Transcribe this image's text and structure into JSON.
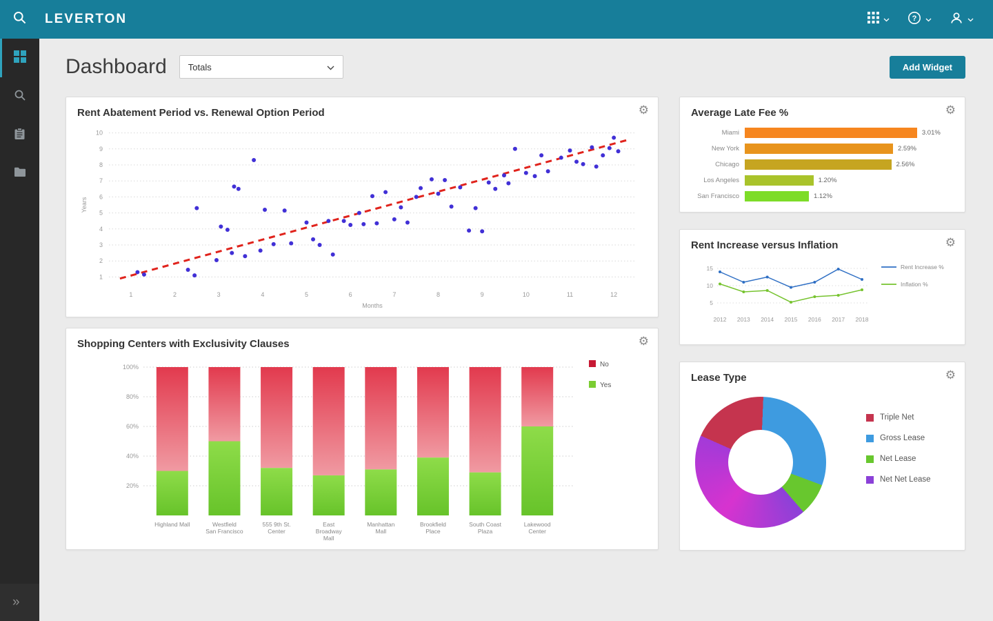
{
  "topbar": {
    "brand": "LEVERTON"
  },
  "header": {
    "title": "Dashboard",
    "filter": {
      "value": "Totals"
    },
    "add_widget_label": "Add Widget"
  },
  "icons": {
    "topbar_search": "magnifier",
    "apps_menu": "3x3-grid",
    "help_menu": "question-circle",
    "user_menu": "person",
    "sidebar_dashboard": "2x2-grid",
    "sidebar_search": "magnifier",
    "sidebar_tasks": "clipboard",
    "sidebar_documents": "folder",
    "expand_glyph": "»",
    "gear_glyph": "⚙"
  },
  "widgets": {
    "scatter": {
      "title": "Rent Abatement Period vs. Renewal Option Period",
      "chart_data": {
        "type": "scatter",
        "xlabel": "Months",
        "ylabel": "Years",
        "xlim": [
          0.5,
          12.5
        ],
        "ylim": [
          0.5,
          10.5
        ],
        "xticks": [
          1,
          2,
          3,
          4,
          5,
          6,
          7,
          8,
          9,
          10,
          11,
          12
        ],
        "yticks": [
          1,
          2,
          3,
          4,
          5,
          6,
          7,
          8,
          9,
          10
        ],
        "point_color": "#4130d6",
        "trend": {
          "x1": 0.75,
          "y1": 0.9,
          "x2": 12.3,
          "y2": 9.55,
          "color": "#e0231c"
        },
        "points": [
          [
            1.15,
            1.3
          ],
          [
            1.3,
            1.15
          ],
          [
            2.3,
            1.45
          ],
          [
            2.45,
            1.1
          ],
          [
            2.5,
            5.3
          ],
          [
            2.95,
            2.05
          ],
          [
            3.05,
            4.15
          ],
          [
            3.2,
            3.95
          ],
          [
            3.3,
            2.5
          ],
          [
            3.35,
            6.65
          ],
          [
            3.45,
            6.5
          ],
          [
            3.6,
            2.3
          ],
          [
            3.8,
            8.3
          ],
          [
            3.95,
            2.65
          ],
          [
            4.05,
            5.2
          ],
          [
            4.25,
            3.05
          ],
          [
            4.5,
            5.15
          ],
          [
            4.65,
            3.1
          ],
          [
            5.0,
            4.4
          ],
          [
            5.15,
            3.35
          ],
          [
            5.3,
            3.0
          ],
          [
            5.5,
            4.5
          ],
          [
            5.6,
            2.4
          ],
          [
            5.85,
            4.5
          ],
          [
            6.0,
            4.25
          ],
          [
            6.2,
            5.0
          ],
          [
            6.3,
            4.3
          ],
          [
            6.5,
            6.05
          ],
          [
            6.6,
            4.35
          ],
          [
            6.8,
            6.3
          ],
          [
            7.0,
            4.6
          ],
          [
            7.15,
            5.35
          ],
          [
            7.3,
            4.4
          ],
          [
            7.5,
            6.0
          ],
          [
            7.6,
            6.55
          ],
          [
            7.85,
            7.1
          ],
          [
            8.0,
            6.2
          ],
          [
            8.15,
            7.05
          ],
          [
            8.3,
            5.4
          ],
          [
            8.5,
            6.6
          ],
          [
            8.7,
            3.9
          ],
          [
            8.85,
            5.3
          ],
          [
            9.0,
            3.85
          ],
          [
            9.15,
            6.9
          ],
          [
            9.3,
            6.5
          ],
          [
            9.5,
            7.35
          ],
          [
            9.6,
            6.85
          ],
          [
            9.75,
            9.0
          ],
          [
            10.0,
            7.5
          ],
          [
            10.2,
            7.3
          ],
          [
            10.35,
            8.6
          ],
          [
            10.5,
            7.6
          ],
          [
            10.8,
            8.45
          ],
          [
            11.0,
            8.9
          ],
          [
            11.15,
            8.2
          ],
          [
            11.3,
            8.05
          ],
          [
            11.5,
            9.1
          ],
          [
            11.6,
            7.9
          ],
          [
            11.75,
            8.6
          ],
          [
            11.9,
            9.05
          ],
          [
            12.0,
            9.7
          ],
          [
            12.1,
            8.85
          ]
        ]
      }
    },
    "stacked": {
      "title": "Shopping Centers with Exclusivity Clauses",
      "chart_data": {
        "type": "bar",
        "stacked": true,
        "categories": [
          [
            "Highland Mall"
          ],
          [
            "Westfield",
            "San Francisco"
          ],
          [
            "555 9th St.",
            "Center"
          ],
          [
            "East",
            "Broadway",
            "Mall"
          ],
          [
            "Manhattan",
            "Mall"
          ],
          [
            "Brookfield",
            "Place"
          ],
          [
            "South Coast",
            "Plaza"
          ],
          [
            "Lakewood",
            "Center"
          ]
        ],
        "yticks": [
          [
            "20%",
            20
          ],
          [
            "40%",
            40
          ],
          [
            "60%",
            60
          ],
          [
            "80%",
            80
          ],
          [
            "100%",
            100
          ]
        ],
        "series": [
          {
            "name": "Yes",
            "color_top": "#8edc49",
            "color_bottom": "#67c32a",
            "values": [
              30,
              50,
              32,
              27,
              31,
              39,
              29,
              60
            ]
          },
          {
            "name": "No",
            "color_top": "#e23a4e",
            "color_bottom": "#f09aa2",
            "values": [
              70,
              50,
              68,
              73,
              69,
              61,
              71,
              40
            ]
          }
        ],
        "legend": [
          {
            "label": "No",
            "color": "#c71934"
          },
          {
            "label": "Yes",
            "color": "#7bcd32"
          }
        ]
      }
    },
    "latefee": {
      "title": "Average Late Fee %",
      "chart_data": {
        "type": "bar",
        "orientation": "horizontal",
        "categories": [
          "Miami",
          "New York",
          "Chicago",
          "Los Angeles",
          "San Francisco"
        ],
        "values": [
          3.01,
          2.59,
          2.56,
          1.2,
          1.12
        ],
        "value_labels": [
          "3.01%",
          "2.59%",
          "2.56%",
          "1.20%",
          "1.12%"
        ],
        "colors": [
          "#f6861f",
          "#e8941d",
          "#c6a521",
          "#a9c32b",
          "#7ddc28"
        ],
        "xmax": 3.65
      }
    },
    "lines": {
      "title": "Rent Increase versus Inflation",
      "chart_data": {
        "type": "line",
        "x": [
          2012,
          2013,
          2014,
          2015,
          2016,
          2017,
          2018
        ],
        "yticks": [
          5,
          10,
          15
        ],
        "ylim": [
          3,
          17
        ],
        "series": [
          {
            "name": "Rent Increase %",
            "color": "#2f6fc4",
            "values": [
              14,
              11,
              12.5,
              9.5,
              11,
              14.8,
              11.8
            ]
          },
          {
            "name": "Inflation %",
            "color": "#76c32e",
            "values": [
              10.5,
              8.2,
              8.6,
              5.2,
              6.8,
              7.2,
              8.8
            ]
          }
        ]
      }
    },
    "donut": {
      "title": "Lease Type",
      "chart_data": {
        "type": "pie",
        "donut": true,
        "start_angle": 294,
        "segments": [
          {
            "label": "Triple Net",
            "value": 19,
            "colors": [
              "#c5344e"
            ]
          },
          {
            "label": "Gross Lease",
            "value": 30,
            "colors": [
              "#3e9be0"
            ]
          },
          {
            "label": "Net Lease",
            "value": 8,
            "colors": [
              "#68c72e"
            ]
          },
          {
            "label": "Net Net Lease",
            "value": 43,
            "colors": [
              "#8b41d8",
              "#d733cf",
              "#a33ad8"
            ]
          }
        ]
      }
    }
  }
}
